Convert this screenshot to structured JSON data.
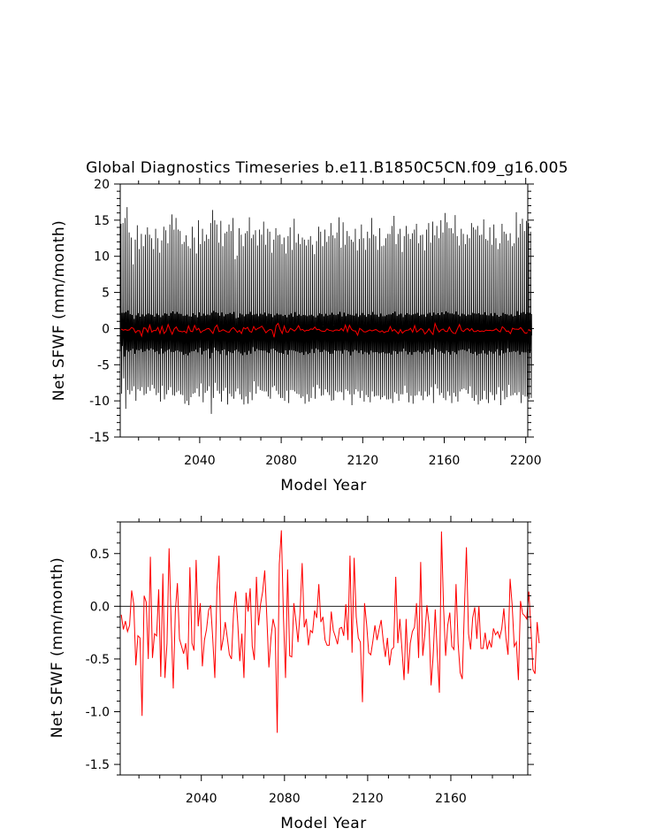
{
  "title": "Global Diagnostics Timeseries b.e11.B1850C5CN.f09_g16.005",
  "colors": {
    "monthly": "#000000",
    "annual": "#ff0000",
    "zero_line": "#000000",
    "axes": "#000000"
  },
  "chart_data": [
    {
      "type": "line",
      "xlabel": "Model Year",
      "ylabel": "Net SFWF (mm/month)",
      "xlim": [
        2001,
        2201
      ],
      "ylim": [
        -15,
        20
      ],
      "x_ticks": [
        2040,
        2080,
        2120,
        2160,
        2200
      ],
      "y_ticks": [
        -15,
        -10,
        -5,
        0,
        5,
        10,
        15,
        20
      ],
      "grid": false,
      "series": [
        {
          "role": "monthly",
          "style": "black thin line, strong seasonal cycle",
          "x_start": 2001,
          "points_per_year": 12,
          "yearly_max": [
            14.5,
            14.6,
            15.3,
            16.8,
            13.3,
            12.6,
            8.9,
            12.3,
            14.3,
            11.0,
            13.1,
            11.4,
            13.0,
            14.0,
            13.0,
            12.5,
            11.0,
            13.8,
            12.5,
            10.5,
            12.2,
            14.1,
            13.6,
            11.8,
            14.4,
            15.8,
            13.7,
            15.3,
            13.7,
            13.5,
            11.7,
            12.0,
            12.9,
            11.4,
            11.1,
            14.1,
            12.6,
            10.4,
            15.0,
            11.7,
            13.8,
            12.1,
            13.0,
            12.4,
            14.6,
            16.4,
            15.0,
            14.4,
            11.9,
            14.9,
            11.4,
            13.2,
            13.4,
            14.4,
            13.5,
            15.3,
            9.6,
            10.1,
            13.9,
            13.0,
            11.4,
            13.2,
            13.5,
            15.4,
            12.5,
            13.0,
            13.6,
            11.5,
            13.7,
            13.0,
            14.8,
            11.6,
            13.8,
            13.4,
            10.5,
            12.3,
            13.9,
            12.9,
            13.0,
            11.7,
            12.6,
            10.4,
            12.8,
            14.0,
            10.9,
            15.2,
            11.9,
            13.1,
            11.7,
            12.6,
            12.3,
            11.5,
            12.3,
            12.8,
            11.6,
            10.3,
            12.1,
            14.1,
            13.4,
            11.4,
            13.7,
            12.0,
            12.8,
            14.6,
            12.9,
            12.5,
            13.3,
            15.4,
            11.2,
            14.7,
            11.6,
            13.5,
            12.8,
            12.3,
            12.0,
            13.8,
            10.8,
            12.4,
            14.4,
            12.5,
            10.9,
            13.4,
            12.5,
            15.3,
            13.0,
            12.8,
            10.9,
            13.9,
            11.4,
            11.5,
            12.5,
            13.1,
            13.1,
            14.2,
            15.6,
            11.7,
            13.1,
            13.8,
            10.6,
            12.8,
            14.2,
            13.1,
            12.4,
            13.2,
            13.7,
            14.5,
            11.8,
            12.9,
            13.0,
            10.8,
            13.7,
            14.6,
            11.9,
            14.8,
            12.9,
            14.2,
            12.5,
            15.0,
            13.3,
            16.0,
            14.7,
            13.9,
            13.9,
            13.2,
            15.7,
            12.8,
            11.5,
            13.8,
            13.1,
            11.7,
            13.0,
            12.5,
            14.6,
            14.0,
            13.7,
            14.2,
            12.9,
            13.0,
            15.1,
            12.4,
            12.2,
            14.0,
            11.6,
            14.4,
            12.5,
            11.0,
            11.8,
            14.5,
            13.4,
            13.1,
            12.2,
            13.2,
            11.4,
            11.8,
            16.1,
            12.6,
            14.5,
            15.2,
            13.5,
            14.9,
            14.6,
            13.4
          ],
          "yearly_min": [
            -9.0,
            -6.9,
            -11.1,
            -8.5,
            -9.1,
            -8.6,
            -8.0,
            -10.0,
            -8.4,
            -8.6,
            -8.1,
            -9.2,
            -9.0,
            -8.1,
            -8.6,
            -7.8,
            -8.3,
            -9.2,
            -8.9,
            -10.1,
            -7.9,
            -9.8,
            -9.1,
            -8.5,
            -8.1,
            -9.2,
            -9.3,
            -8.8,
            -8.6,
            -9.1,
            -9.2,
            -10.4,
            -10.0,
            -10.6,
            -9.5,
            -9.0,
            -8.9,
            -8.3,
            -9.4,
            -7.6,
            -10.2,
            -8.9,
            -8.6,
            -8.0,
            -11.8,
            -9.6,
            -7.5,
            -8.6,
            -9.0,
            -10.1,
            -8.6,
            -8.2,
            -10.5,
            -9.0,
            -9.4,
            -9.7,
            -8.7,
            -8.3,
            -9.1,
            -9.8,
            -10.5,
            -9.4,
            -10.4,
            -8.8,
            -9.9,
            -7.3,
            -9.0,
            -8.0,
            -8.5,
            -8.6,
            -8.7,
            -8.7,
            -9.4,
            -9.7,
            -8.1,
            -7.9,
            -8.6,
            -9.1,
            -9.6,
            -9.6,
            -10.0,
            -8.6,
            -10.3,
            -8.5,
            -8.5,
            -8.7,
            -9.0,
            -9.1,
            -9.6,
            -9.4,
            -10.4,
            -9.1,
            -10.1,
            -9.6,
            -8.1,
            -9.7,
            -7.8,
            -8.3,
            -9.3,
            -9.2,
            -8.4,
            -8.8,
            -9.2,
            -10.0,
            -9.9,
            -8.6,
            -8.8,
            -8.7,
            -8.8,
            -9.9,
            -8.4,
            -8.6,
            -9.1,
            -10.6,
            -9.1,
            -8.4,
            -8.7,
            -9.6,
            -8.6,
            -10.1,
            -9.2,
            -9.5,
            -10.2,
            -8.7,
            -9.4,
            -9.3,
            -9.3,
            -9.8,
            -9.5,
            -9.3,
            -9.8,
            -9.8,
            -9.7,
            -10.3,
            -8.8,
            -9.0,
            -10.0,
            -9.1,
            -9.1,
            -7.9,
            -8.9,
            -10.2,
            -9.3,
            -10.4,
            -9.3,
            -9.2,
            -8.7,
            -9.3,
            -9.9,
            -8.7,
            -9.4,
            -9.2,
            -8.1,
            -10.3,
            -7.7,
            -8.3,
            -9.2,
            -8.9,
            -9.6,
            -9.9,
            -8.7,
            -9.3,
            -10.3,
            -8.9,
            -9.4,
            -10.1,
            -8.7,
            -8.4,
            -8.3,
            -8.5,
            -9.0,
            -8.0,
            -9.6,
            -10.0,
            -9.2,
            -10.5,
            -10.0,
            -9.8,
            -8.6,
            -9.8,
            -10.3,
            -8.8,
            -9.2,
            -9.9,
            -9.1,
            -8.1,
            -10.6,
            -8.6,
            -9.8,
            -9.5,
            -7.8,
            -9.3,
            -9.2,
            -8.9,
            -9.2,
            -8.8,
            -10.3,
            -9.2,
            -9.4,
            -9.4,
            -9.7,
            -9.6,
            -8.2,
            -8.9
          ]
        },
        {
          "role": "annual-mean",
          "style": "red line",
          "x_start": 2001.5,
          "x_step": 1,
          "values": [
            -0.08,
            -0.22,
            -0.14,
            -0.24,
            -0.18,
            0.15,
            0.02,
            -0.56,
            -0.28,
            -0.3,
            -1.04,
            0.1,
            0.04,
            -0.5,
            0.47,
            -0.49,
            -0.26,
            -0.28,
            0.16,
            -0.67,
            0.31,
            -0.68,
            -0.35,
            0.55,
            -0.16,
            -0.78,
            -0.05,
            0.22,
            -0.31,
            -0.38,
            -0.45,
            -0.35,
            -0.6,
            0.37,
            -0.35,
            -0.42,
            0.44,
            -0.19,
            0.03,
            -0.57,
            -0.32,
            -0.22,
            -0.04,
            0.01,
            -0.31,
            -0.68,
            0.16,
            0.48,
            -0.42,
            -0.31,
            -0.15,
            -0.3,
            -0.46,
            -0.5,
            -0.06,
            0.14,
            -0.15,
            -0.52,
            -0.26,
            -0.68,
            0.13,
            -0.05,
            0.17,
            -0.38,
            -0.51,
            0.28,
            -0.18,
            0.02,
            0.14,
            0.34,
            -0.1,
            -0.58,
            -0.3,
            -0.12,
            -0.21,
            -1.2,
            0.4,
            0.72,
            -0.1,
            -0.68,
            0.35,
            -0.47,
            -0.48,
            0.03,
            -0.14,
            -0.34,
            -0.05,
            0.41,
            -0.2,
            -0.12,
            -0.37,
            -0.23,
            -0.25,
            -0.04,
            -0.11,
            0.21,
            -0.15,
            -0.1,
            -0.32,
            -0.37,
            -0.37,
            -0.05,
            -0.23,
            -0.29,
            -0.36,
            -0.21,
            -0.2,
            -0.28,
            0.02,
            -0.32,
            0.48,
            -0.44,
            0.46,
            -0.1,
            -0.3,
            -0.34,
            -0.91,
            0.03,
            -0.17,
            -0.44,
            -0.46,
            -0.33,
            -0.18,
            -0.32,
            -0.22,
            -0.13,
            -0.33,
            -0.48,
            -0.3,
            -0.56,
            -0.41,
            -0.39,
            0.28,
            -0.35,
            -0.12,
            -0.41,
            -0.7,
            -0.12,
            -0.64,
            -0.35,
            -0.24,
            -0.2,
            0.03,
            -0.49,
            0.42,
            -0.47,
            -0.27,
            0.01,
            -0.17,
            -0.75,
            -0.47,
            -0.03,
            -0.46,
            -0.82,
            0.71,
            -0.01,
            -0.47,
            -0.18,
            -0.06,
            -0.38,
            -0.41,
            0.21,
            -0.35,
            -0.63,
            -0.69,
            -0.04,
            0.56,
            -0.26,
            -0.41,
            -0.11,
            -0.01,
            -0.31,
            0.0,
            -0.4,
            -0.4,
            -0.25,
            -0.41,
            -0.33,
            -0.39,
            -0.21,
            -0.27,
            -0.24,
            -0.3,
            -0.21,
            -0.02,
            -0.3,
            -0.46,
            0.26,
            0.01,
            -0.38,
            -0.34,
            -0.7,
            0.05,
            -0.07,
            -0.09,
            -0.12,
            0.14,
            -0.2,
            -0.6,
            -0.64,
            -0.15,
            -0.35
          ]
        }
      ]
    },
    {
      "type": "line",
      "xlabel": "Model Year",
      "ylabel": "Net SFWF (mm/month)",
      "xlim": [
        2001,
        2197
      ],
      "ylim": [
        -1.6,
        0.8
      ],
      "x_ticks": [
        2040,
        2080,
        2120,
        2160
      ],
      "y_ticks": [
        -1.5,
        -1.0,
        -0.5,
        0.0,
        0.5
      ],
      "y_tick_labels": [
        "-1.5",
        "-1.0",
        "-0.5",
        "0.0",
        "0.5"
      ],
      "zero_line": 0.0,
      "grid": false,
      "series": [
        {
          "role": "annual-mean",
          "style": "red line",
          "x_start": 2001.5,
          "x_step": 1,
          "values_ref": "chart_data.0.series.1.values"
        }
      ]
    }
  ]
}
